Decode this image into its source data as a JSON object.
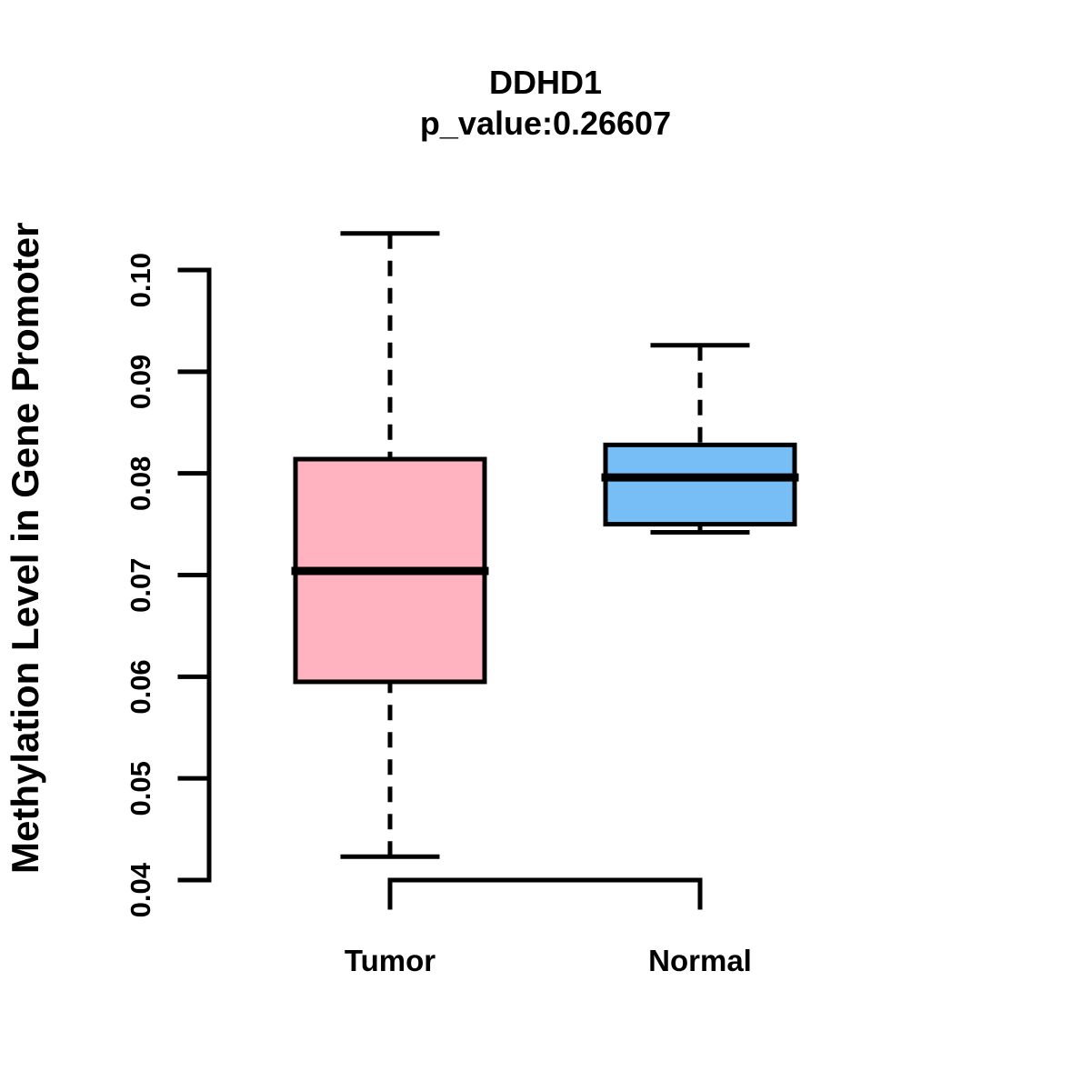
{
  "figure": {
    "background": "#FFFFFF"
  },
  "chart_data": {
    "type": "boxplot",
    "title": "DDHD1",
    "subtitle": "p_value:0.26607",
    "ylabel": "Methylation Level in Gene Promoter",
    "xlabel": "",
    "ylim": [
      0.04,
      0.1
    ],
    "yticks": [
      0.04,
      0.05,
      0.06,
      0.07,
      0.08,
      0.09,
      0.1
    ],
    "ytick_labels": [
      "0.04",
      "0.05",
      "0.06",
      "0.07",
      "0.08",
      "0.09",
      "0.10"
    ],
    "categories": [
      "Tumor",
      "Normal"
    ],
    "series": [
      {
        "name": "Tumor",
        "whisker_low": 0.0423,
        "q1": 0.0595,
        "median": 0.0704,
        "q3": 0.0814,
        "whisker_high": 0.1036,
        "fill": "#FFB3C1"
      },
      {
        "name": "Normal",
        "whisker_low": 0.0742,
        "q1": 0.075,
        "median": 0.0796,
        "q3": 0.0828,
        "whisker_high": 0.0926,
        "fill": "#76BEF5"
      }
    ],
    "stroke_color": "#000000",
    "whisker_style": "dashed",
    "grid": false,
    "legend": "none"
  }
}
